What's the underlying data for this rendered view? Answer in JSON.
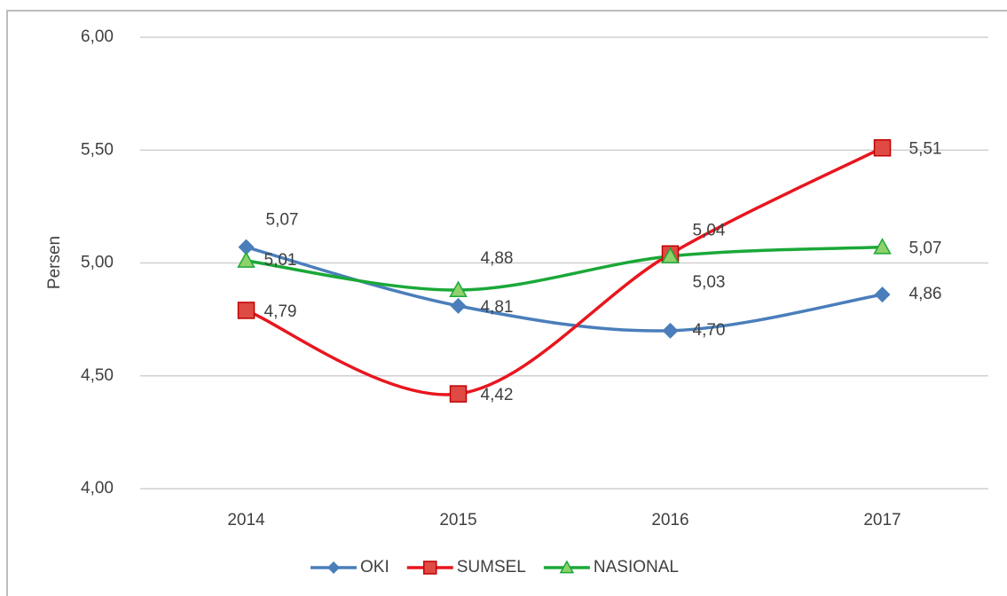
{
  "chart_data": {
    "type": "line",
    "y_label": "Persen",
    "categories": [
      "2014",
      "2015",
      "2016",
      "2017"
    ],
    "series": [
      {
        "name": "OKI",
        "color": "#4a7ebb",
        "marker": "diamond",
        "values": [
          5.07,
          4.81,
          4.7,
          4.86
        ],
        "value_labels": [
          "5,07",
          "4,81",
          "4,70",
          "4,86"
        ]
      },
      {
        "name": "SUMSEL",
        "color": "#e8161e",
        "marker": "square",
        "values": [
          4.79,
          4.42,
          5.04,
          5.51
        ],
        "value_labels": [
          "4,79",
          "4,42",
          "5,04",
          "5,51"
        ]
      },
      {
        "name": "NASIONAL",
        "color": "#1aa838",
        "marker": "triangle",
        "values": [
          5.01,
          4.88,
          5.03,
          5.07
        ],
        "value_labels": [
          "5,01",
          "4,88",
          "5,03",
          "5,07"
        ]
      }
    ],
    "ylim": [
      4,
      6
    ],
    "yticks": [
      {
        "value": 4,
        "label": "4,00"
      },
      {
        "value": 4.5,
        "label": "4,50"
      },
      {
        "value": 5,
        "label": "5,00"
      },
      {
        "value": 5.5,
        "label": "5,50"
      },
      {
        "value": 6,
        "label": "6,00"
      }
    ],
    "grid": true,
    "smooth": true,
    "legend": "bottom"
  }
}
